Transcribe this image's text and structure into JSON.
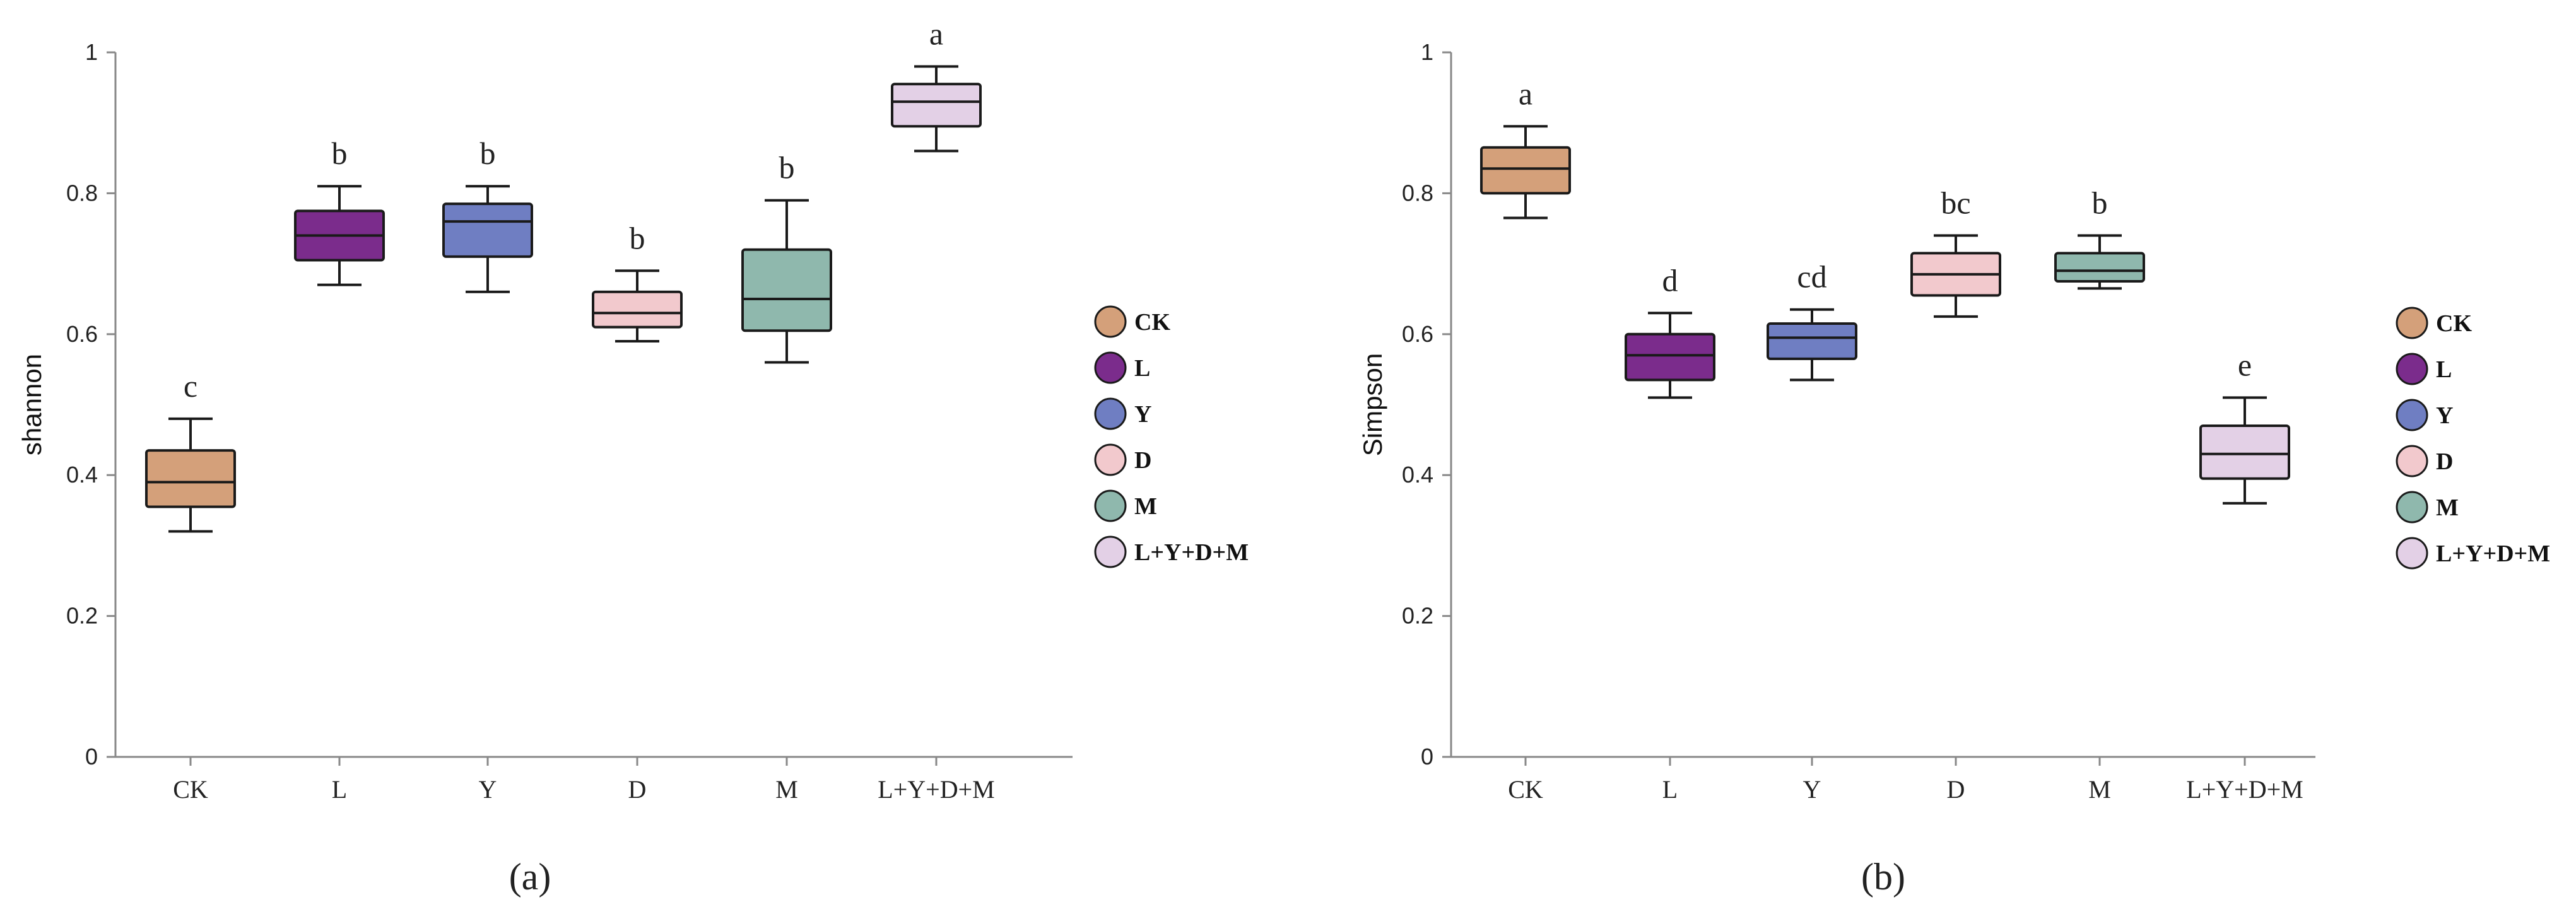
{
  "colors": {
    "CK": "#d4a07a",
    "L": "#7b2c8c",
    "Y": "#6f7ec2",
    "D": "#f2c9cd",
    "M": "#8fb8ad",
    "L+Y+D+M": "#e3d0e6",
    "stroke": "#1a1a1a",
    "axis": "#888888"
  },
  "chart_data": [
    {
      "type": "box",
      "panel_label": "(a)",
      "title": "",
      "xlabel": "",
      "ylabel": "shannon",
      "ylim": [
        0,
        1
      ],
      "yticks": [
        0,
        0.2,
        0.4,
        0.6,
        0.8,
        1
      ],
      "ytick_labels": [
        "0",
        "0.2",
        "0.4",
        "0.6",
        "0.8",
        "1"
      ],
      "categories": [
        "CK",
        "L",
        "Y",
        "D",
        "M",
        "L+Y+D+M"
      ],
      "boxes": [
        {
          "category": "CK",
          "min": 0.32,
          "q1": 0.355,
          "median": 0.39,
          "q3": 0.435,
          "max": 0.48,
          "letter": "c"
        },
        {
          "category": "L",
          "min": 0.67,
          "q1": 0.705,
          "median": 0.74,
          "q3": 0.775,
          "max": 0.81,
          "letter": "b"
        },
        {
          "category": "Y",
          "min": 0.66,
          "q1": 0.71,
          "median": 0.76,
          "q3": 0.785,
          "max": 0.81,
          "letter": "b"
        },
        {
          "category": "D",
          "min": 0.59,
          "q1": 0.61,
          "median": 0.63,
          "q3": 0.66,
          "max": 0.69,
          "letter": "b"
        },
        {
          "category": "M",
          "min": 0.56,
          "q1": 0.605,
          "median": 0.65,
          "q3": 0.72,
          "max": 0.79,
          "letter": "b"
        },
        {
          "category": "L+Y+D+M",
          "min": 0.86,
          "q1": 0.895,
          "median": 0.93,
          "q3": 0.955,
          "max": 0.98,
          "letter": "a"
        }
      ],
      "legend": [
        "CK",
        "L",
        "Y",
        "D",
        "M",
        "L+Y+D+M"
      ]
    },
    {
      "type": "box",
      "panel_label": "(b)",
      "title": "",
      "xlabel": "",
      "ylabel": "Simpson",
      "ylim": [
        0,
        1
      ],
      "yticks": [
        0,
        0.2,
        0.4,
        0.6,
        0.8,
        1
      ],
      "ytick_labels": [
        "0",
        "0.2",
        "0.4",
        "0.6",
        "0.8",
        "1"
      ],
      "categories": [
        "CK",
        "L",
        "Y",
        "D",
        "M",
        "L+Y+D+M"
      ],
      "boxes": [
        {
          "category": "CK",
          "min": 0.765,
          "q1": 0.8,
          "median": 0.835,
          "q3": 0.865,
          "max": 0.895,
          "letter": "a"
        },
        {
          "category": "L",
          "min": 0.51,
          "q1": 0.535,
          "median": 0.57,
          "q3": 0.6,
          "max": 0.63,
          "letter": "d"
        },
        {
          "category": "Y",
          "min": 0.535,
          "q1": 0.565,
          "median": 0.595,
          "q3": 0.615,
          "max": 0.635,
          "letter": "cd"
        },
        {
          "category": "D",
          "min": 0.625,
          "q1": 0.655,
          "median": 0.685,
          "q3": 0.715,
          "max": 0.74,
          "letter": "bc"
        },
        {
          "category": "M",
          "min": 0.665,
          "q1": 0.675,
          "median": 0.69,
          "q3": 0.715,
          "max": 0.74,
          "letter": "b"
        },
        {
          "category": "L+Y+D+M",
          "min": 0.36,
          "q1": 0.395,
          "median": 0.43,
          "q3": 0.47,
          "max": 0.51,
          "letter": "e"
        }
      ],
      "legend": [
        "CK",
        "L",
        "Y",
        "D",
        "M",
        "L+Y+D+M"
      ]
    }
  ]
}
